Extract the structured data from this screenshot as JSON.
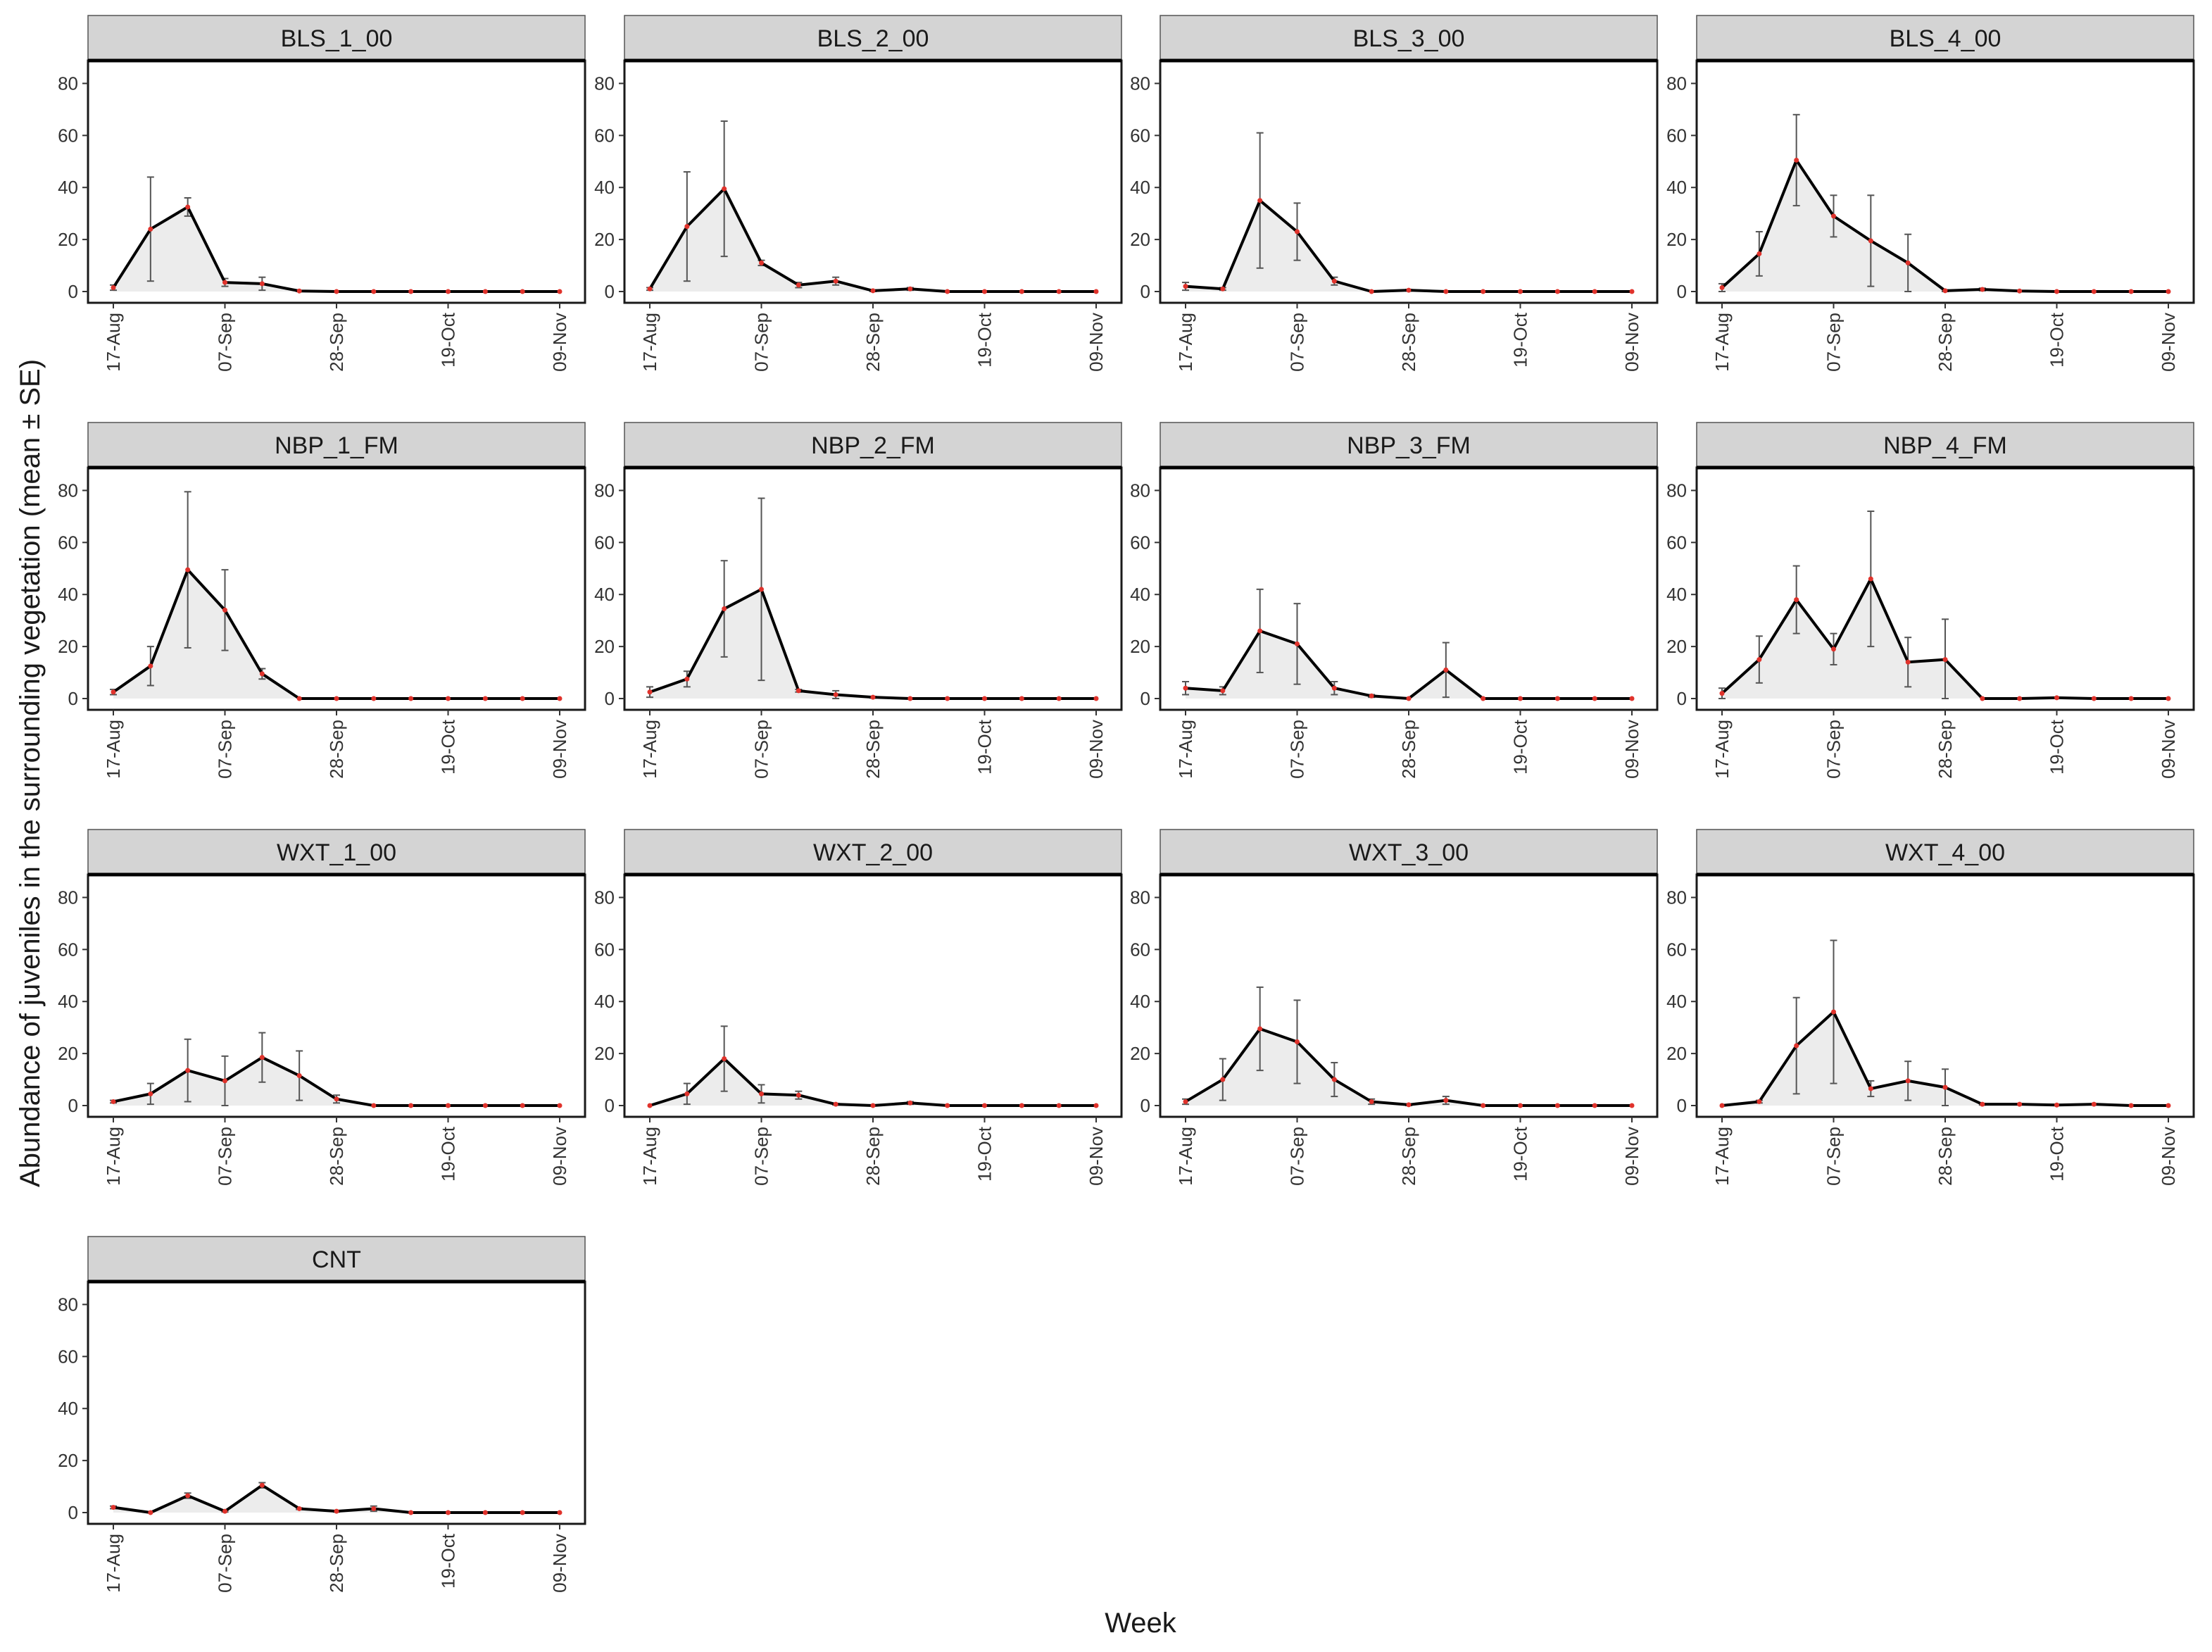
{
  "chart_data": {
    "type": "area",
    "title": "",
    "xlabel": "Week",
    "ylabel": "Abundance of juveniles in the surrounding vegetation (mean ± SE)",
    "ylim": [
      0,
      85
    ],
    "yticks": [
      0,
      20,
      40,
      60,
      80
    ],
    "x": [
      "2023-08-17",
      "2023-08-24",
      "2023-08-31",
      "2023-09-07",
      "2023-09-14",
      "2023-09-21",
      "2023-09-28",
      "2023-10-05",
      "2023-10-12",
      "2023-10-19",
      "2023-10-26",
      "2023-11-02",
      "2023-11-09"
    ],
    "xticks": [
      "17-Aug",
      "07-Sep",
      "28-Sep",
      "19-Oct",
      "09-Nov"
    ],
    "xtick_dates": [
      "2023-08-17",
      "2023-09-07",
      "2023-09-28",
      "2023-10-19",
      "2023-11-09"
    ],
    "grid": false,
    "colors": {
      "line": "#000000",
      "fill": "#ececec",
      "point": "#e0332c",
      "errorbar": "#555555",
      "strip": "#d4d4d4"
    },
    "panels": [
      {
        "name": "BLS_1_00",
        "mean": [
          1.5,
          24,
          32.5,
          3.5,
          3,
          0.2,
          0,
          0,
          0,
          0,
          0,
          0,
          0
        ],
        "se": [
          1,
          20,
          3.5,
          1.5,
          2.5,
          0.2,
          0,
          0,
          0,
          0,
          0,
          0,
          0
        ]
      },
      {
        "name": "BLS_2_00",
        "mean": [
          1,
          25,
          39.5,
          11,
          2.5,
          4,
          0.3,
          1,
          0,
          0,
          0,
          0,
          0
        ],
        "se": [
          0.5,
          21,
          26,
          1,
          1,
          1.5,
          0.3,
          0.5,
          0,
          0,
          0,
          0,
          0
        ]
      },
      {
        "name": "BLS_3_00",
        "mean": [
          2,
          1,
          35,
          23,
          4,
          0,
          0.5,
          0,
          0,
          0,
          0,
          0,
          0
        ],
        "se": [
          1.5,
          0.5,
          26,
          11,
          1.5,
          0,
          0.3,
          0,
          0,
          0,
          0,
          0,
          0
        ]
      },
      {
        "name": "BLS_4_00",
        "mean": [
          1.5,
          14.5,
          50.5,
          29,
          19.5,
          11,
          0.3,
          0.8,
          0.2,
          0,
          0,
          0,
          0
        ],
        "se": [
          1.5,
          8.5,
          17.5,
          8,
          17.5,
          11,
          0.3,
          0.5,
          0.2,
          0,
          0,
          0,
          0
        ]
      },
      {
        "name": "NBP_1_FM",
        "mean": [
          2.5,
          12.5,
          49.5,
          34,
          9.5,
          0,
          0,
          0,
          0,
          0,
          0,
          0,
          0
        ],
        "se": [
          1,
          7.5,
          30,
          15.5,
          2,
          0,
          0,
          0,
          0,
          0,
          0,
          0,
          0
        ]
      },
      {
        "name": "NBP_2_FM",
        "mean": [
          2.5,
          7.5,
          34.5,
          42,
          3,
          1.5,
          0.5,
          0,
          0,
          0,
          0,
          0,
          0
        ],
        "se": [
          2,
          3,
          18.5,
          35,
          0.5,
          1.5,
          0.3,
          0,
          0,
          0,
          0,
          0,
          0
        ]
      },
      {
        "name": "NBP_3_FM",
        "mean": [
          4,
          3,
          26,
          21,
          4,
          1,
          0,
          11,
          0,
          0,
          0,
          0,
          0
        ],
        "se": [
          2.5,
          1.5,
          16,
          15.5,
          2.5,
          0.5,
          0,
          10.5,
          0,
          0,
          0,
          0,
          0
        ]
      },
      {
        "name": "NBP_4_FM",
        "mean": [
          2,
          15,
          38,
          19,
          46,
          14,
          15,
          0,
          0,
          0.3,
          0,
          0,
          0
        ],
        "se": [
          2,
          9,
          13,
          6,
          26,
          9.5,
          15.5,
          0,
          0,
          0.2,
          0,
          0,
          0
        ]
      },
      {
        "name": "WXT_1_00",
        "mean": [
          1.5,
          4.5,
          13.5,
          9.5,
          18.5,
          11.5,
          2.5,
          0,
          0,
          0,
          0,
          0,
          0
        ],
        "se": [
          0.5,
          4,
          12,
          9.5,
          9.5,
          9.5,
          1.5,
          0,
          0,
          0,
          0,
          0,
          0
        ]
      },
      {
        "name": "WXT_2_00",
        "mean": [
          0,
          4.5,
          18,
          4.5,
          4,
          0.5,
          0,
          1,
          0,
          0,
          0,
          0,
          0
        ],
        "se": [
          0,
          4,
          12.5,
          3.5,
          1.5,
          0.3,
          0,
          0.5,
          0,
          0,
          0,
          0,
          0
        ]
      },
      {
        "name": "WXT_3_00",
        "mean": [
          1.5,
          10,
          29.5,
          24.5,
          10,
          1.5,
          0.3,
          2,
          0,
          0,
          0,
          0,
          0
        ],
        "se": [
          1,
          8,
          16,
          16,
          6.5,
          1,
          0.3,
          1.5,
          0,
          0,
          0,
          0,
          0
        ]
      },
      {
        "name": "WXT_4_00",
        "mean": [
          0,
          1.5,
          23,
          36,
          6.5,
          9.5,
          7,
          0.5,
          0.5,
          0.2,
          0.5,
          0,
          0
        ],
        "se": [
          0,
          0.5,
          18.5,
          27.5,
          3,
          7.5,
          7,
          0.3,
          0.2,
          0.2,
          0.2,
          0,
          0
        ]
      },
      {
        "name": "CNT",
        "mean": [
          2,
          0,
          6.5,
          0.5,
          10.5,
          1.5,
          0.5,
          1.5,
          0,
          0,
          0,
          0,
          0
        ],
        "se": [
          0.5,
          0,
          1,
          0.3,
          1,
          0.3,
          0.3,
          1,
          0,
          0,
          0,
          0,
          0
        ]
      }
    ]
  }
}
